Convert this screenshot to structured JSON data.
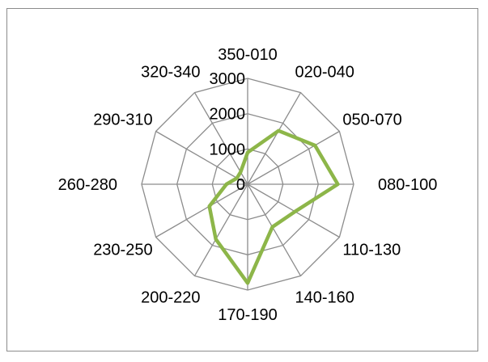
{
  "chart_data": {
    "type": "radar",
    "categories": [
      "350-010",
      "020-040",
      "050-070",
      "080-100",
      "110-130",
      "140-160",
      "170-190",
      "200-220",
      "230-250",
      "260-280",
      "290-310",
      "320-340"
    ],
    "series": [
      {
        "values": [
          900,
          1750,
          2200,
          2550,
          1550,
          1400,
          2800,
          1800,
          1250,
          600,
          350,
          400
        ]
      }
    ],
    "rlim": [
      0,
      3000
    ],
    "ticks": [
      "0",
      "1000",
      "2000",
      "3000"
    ],
    "grid": true,
    "colors": {
      "series": "#8db649",
      "grid": "#8c8c8c",
      "frame": "#8c8c8c"
    }
  }
}
